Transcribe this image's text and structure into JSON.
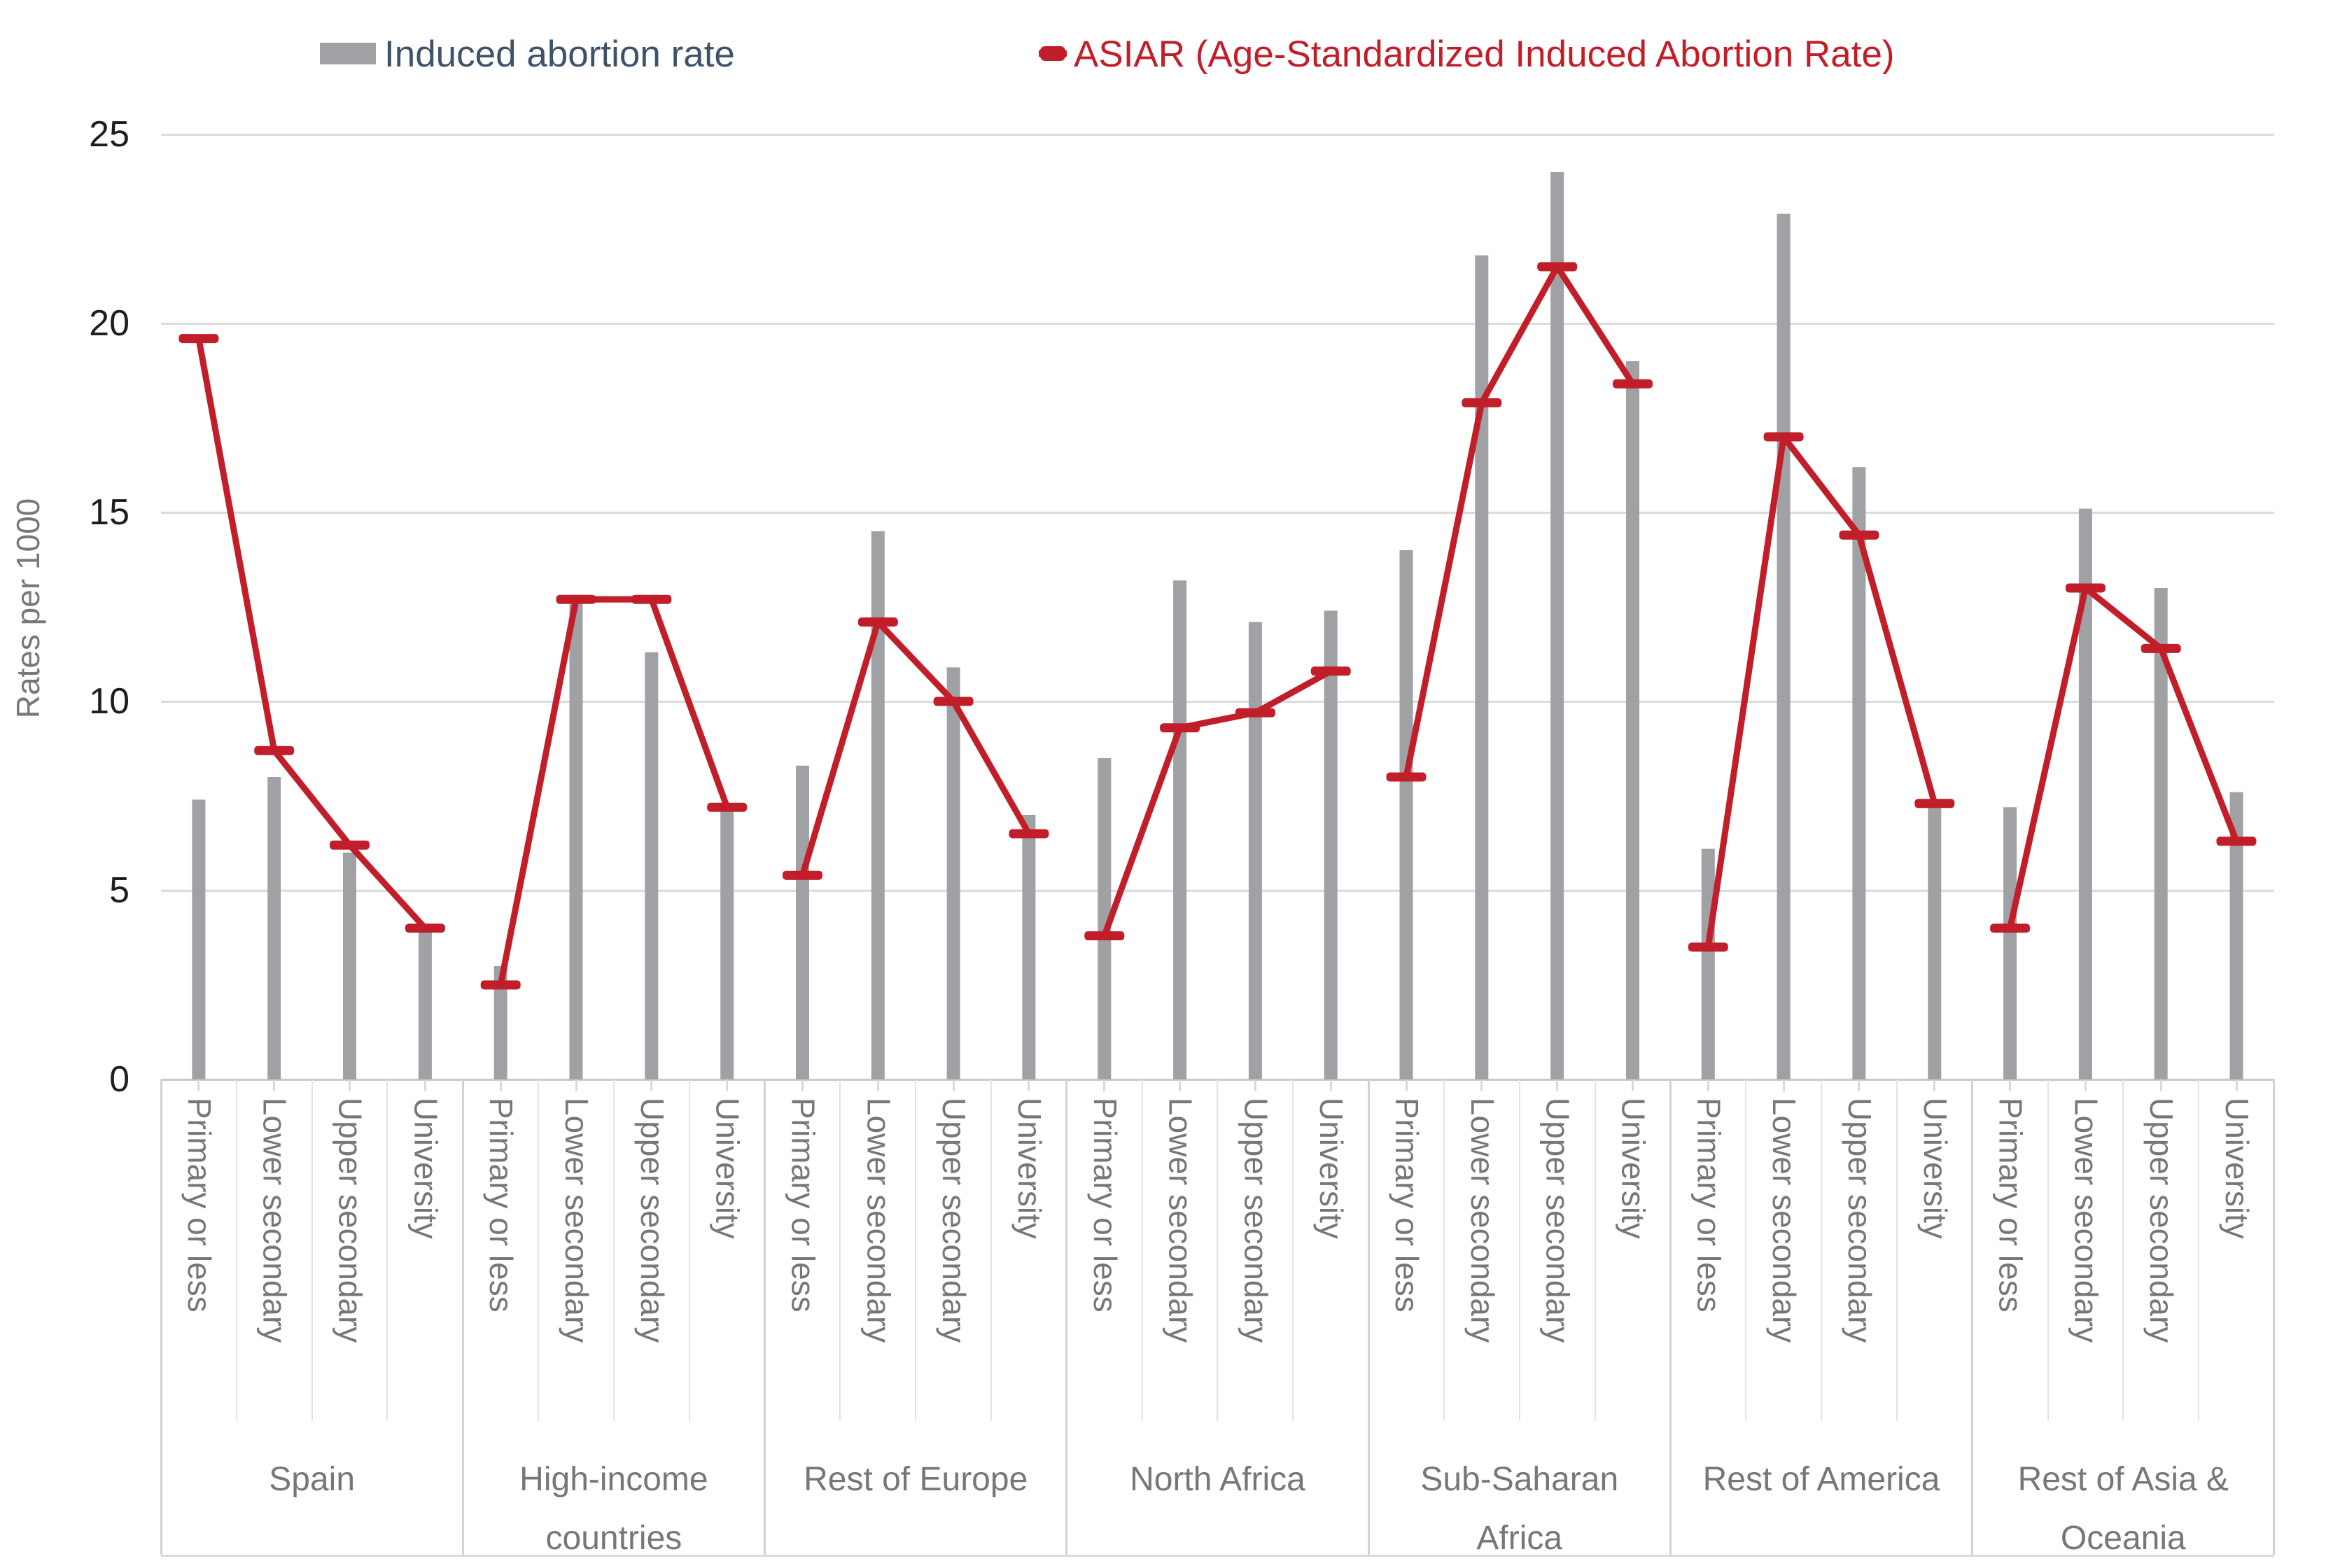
{
  "legend": {
    "items": [
      {
        "label": "Induced abortion rate",
        "swatch": "gray-rect",
        "color": "#9FA1A4",
        "text_color": "#3E5269"
      },
      {
        "label": "ASIAR (Age-Standardized Induced Abortion Rate)",
        "swatch": "red-line-marker",
        "color": "#C21E2A",
        "text_color": "#C21E2A"
      }
    ]
  },
  "chart_data": {
    "type": "bar",
    "subtype": "grouped bars with overlaid line markers",
    "title": "",
    "xlabel": "",
    "ylabel": "Rates per 1000",
    "ylim": [
      0,
      25
    ],
    "yticks": [
      0,
      5,
      10,
      15,
      20,
      25
    ],
    "grid": "horizontal",
    "legend_position": "top",
    "series_names": [
      "Induced abortion rate",
      "ASIAR (Age-Standardized Induced Abortion Rate)"
    ],
    "categories": [
      "Primary or less",
      "Lower secondary",
      "Upper secondary",
      "University"
    ],
    "groups": [
      {
        "label": "Spain",
        "bars": [
          7.4,
          8.0,
          6.0,
          3.9
        ],
        "asiar": [
          19.6,
          8.7,
          6.2,
          4.0
        ]
      },
      {
        "label": "High-income\ncountries",
        "bars": [
          3.0,
          12.7,
          11.3,
          7.1
        ],
        "asiar": [
          2.5,
          12.7,
          12.7,
          7.2
        ]
      },
      {
        "label": "Rest of Europe",
        "bars": [
          8.3,
          14.5,
          10.9,
          7.0
        ],
        "asiar": [
          5.4,
          12.1,
          10.0,
          6.5
        ]
      },
      {
        "label": "North Africa",
        "bars": [
          8.5,
          13.2,
          12.1,
          12.4
        ],
        "asiar": [
          3.8,
          9.3,
          9.7,
          10.8
        ]
      },
      {
        "label": "Sub-Saharan\nAfrica",
        "bars": [
          14.0,
          21.8,
          24.0,
          19.0
        ],
        "asiar": [
          8.0,
          17.9,
          21.5,
          18.4
        ]
      },
      {
        "label": "Rest of America",
        "bars": [
          6.1,
          22.9,
          16.2,
          7.4
        ],
        "asiar": [
          3.5,
          17.0,
          14.4,
          7.3
        ]
      },
      {
        "label": "Rest of Asia &\nOceania",
        "bars": [
          7.2,
          15.1,
          13.0,
          7.6
        ],
        "asiar": [
          4.0,
          13.0,
          11.4,
          6.3
        ]
      }
    ],
    "colors": {
      "bar": "#9FA1A4",
      "line": "#C21E2A",
      "gridline": "#DBDBDB",
      "axis_text": "#1E1E1E",
      "label_text": "#767779"
    }
  }
}
